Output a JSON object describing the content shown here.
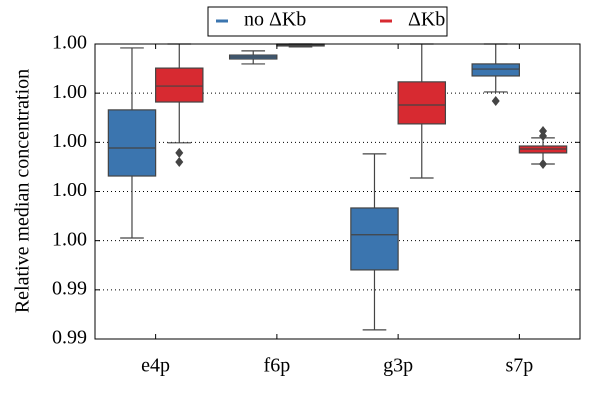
{
  "chart_data": {
    "type": "box",
    "y_label": "Relative median concentration",
    "categories": [
      "e4p",
      "f6p",
      "g3p",
      "s7p"
    ],
    "ylim": [
      0.992,
      1.004
    ],
    "yticks": [
      {
        "value": 0.992,
        "label": "0.99"
      },
      {
        "value": 0.994,
        "label": "0.99"
      },
      {
        "value": 0.996,
        "label": "1.00"
      },
      {
        "value": 0.998,
        "label": "1.00"
      },
      {
        "value": 1.0,
        "label": "1.00"
      },
      {
        "value": 1.002,
        "label": "1.00"
      },
      {
        "value": 1.004,
        "label": "1.00"
      }
    ],
    "grid": true,
    "legend": "top",
    "series": [
      {
        "name": "no ΔKb",
        "color": "#3b75af",
        "boxes": [
          {
            "low": 0.99611,
            "q1": 0.99863,
            "median": 0.99977,
            "q3": 1.00132,
            "high": 1.00384,
            "outliers": []
          },
          {
            "low": 1.00319,
            "q1": 1.00339,
            "median": 1.00347,
            "q3": 1.00355,
            "high": 1.00372,
            "outliers": []
          },
          {
            "low": 0.99237,
            "q1": 0.99481,
            "median": 0.99624,
            "q3": 0.99733,
            "high": 0.99953,
            "outliers": []
          },
          {
            "low": 1.00205,
            "q1": 1.0027,
            "median": 1.00298,
            "q3": 1.00319,
            "high": 1.004,
            "outliers": [
              1.00168
            ]
          }
        ]
      },
      {
        "name": "ΔKb",
        "color": "#d72a31",
        "boxes": [
          {
            "low": 0.99998,
            "q1": 1.00164,
            "median": 1.00229,
            "q3": 1.00302,
            "high": 1.004,
            "outliers": [
              0.99957,
              0.9992
            ]
          },
          {
            "low": 1.00388,
            "q1": 1.00392,
            "median": 1.00396,
            "q3": 1.004,
            "high": 1.004,
            "outliers": []
          },
          {
            "low": 0.99855,
            "q1": 1.00075,
            "median": 1.00152,
            "q3": 1.00246,
            "high": 1.004,
            "outliers": []
          },
          {
            "low": 0.99912,
            "q1": 0.99957,
            "median": 0.99973,
            "q3": 0.99985,
            "high": 1.00018,
            "outliers": [
              1.00046,
              1.00026,
              0.99912
            ]
          }
        ]
      }
    ]
  }
}
